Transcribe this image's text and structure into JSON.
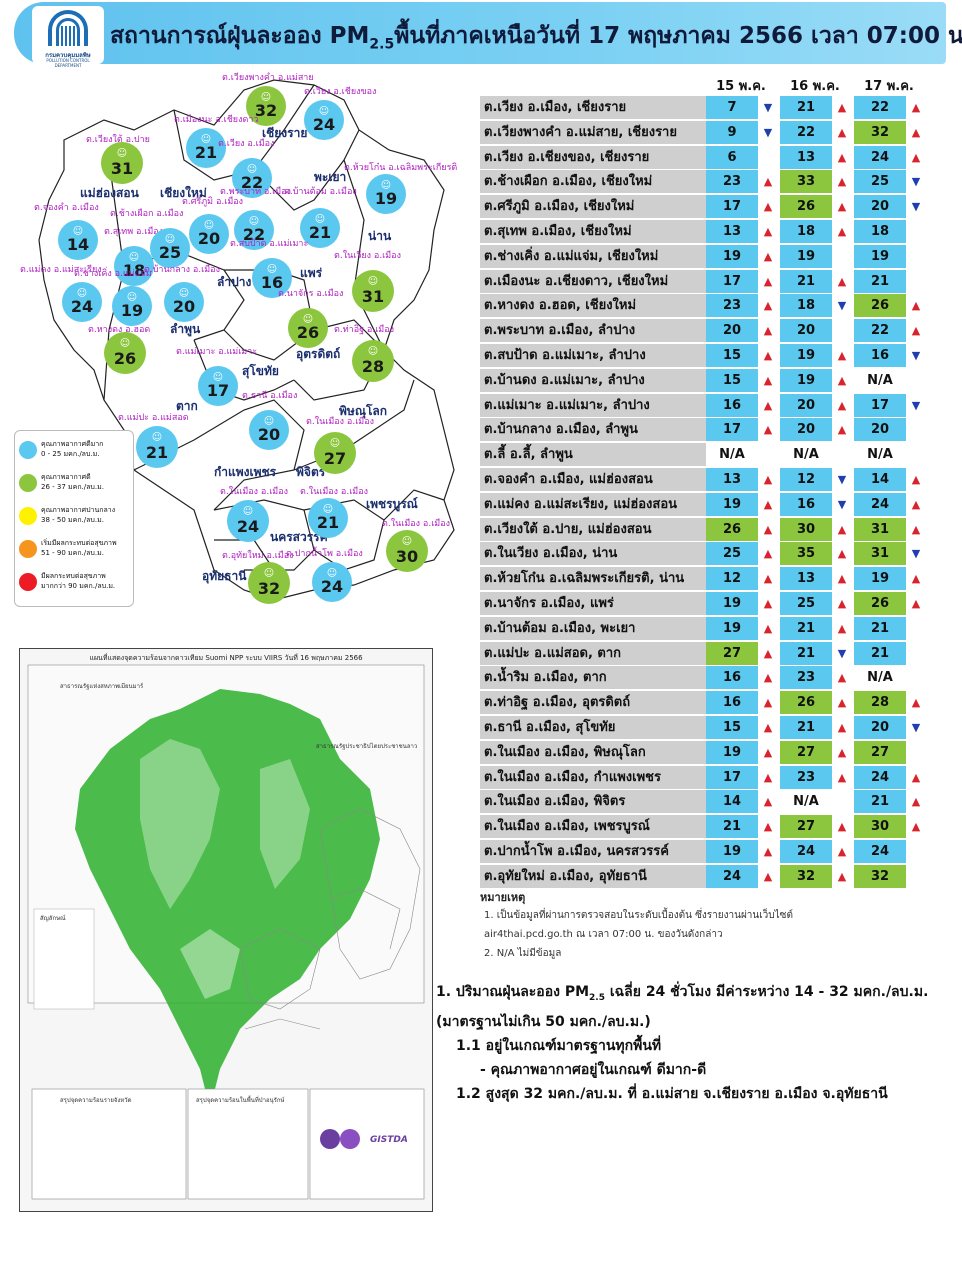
{
  "header": {
    "logo_text": "กรมควบคุมมลพิษ",
    "logo_subtext": "POLLUTION CONTROL DEPARTMENT",
    "title_prefix": "สถานการณ์ฝุ่นละออง PM",
    "title_sub": "2.5",
    "title_suffix": "พื้นที่ภาคเหนือวันที่ 17 พฤษภาคม 2566 เวลา 07:00 น."
  },
  "colors": {
    "very_good": "#5bc8f0",
    "good": "#8cc63e",
    "moderate": "#fff200",
    "start_effect": "#f7941d",
    "unhealthy": "#ed1c24",
    "station_cell": "#cfcfcf",
    "up_arrow": "#d9232d",
    "down_arrow": "#1f3fb0"
  },
  "map": {
    "provinces": [
      {
        "name": "เชียงราย"
      },
      {
        "name": "แม่ฮ่องสอน"
      },
      {
        "name": "เชียงใหม่"
      },
      {
        "name": "พะเยา"
      },
      {
        "name": "น่าน"
      },
      {
        "name": "ลำปาง"
      },
      {
        "name": "แพร่"
      },
      {
        "name": "ลำพูน"
      },
      {
        "name": "อุตรดิตถ์"
      },
      {
        "name": "สุโขทัย"
      },
      {
        "name": "ตาก"
      },
      {
        "name": "พิษณุโลก"
      },
      {
        "name": "กำแพงเพชร"
      },
      {
        "name": "พิจิตร"
      },
      {
        "name": "เพชรบูรณ์"
      },
      {
        "name": "นครสวรรค์"
      },
      {
        "name": "อุทัยธานี"
      }
    ],
    "stations": [
      {
        "label": "ต.เวียงพางคำ อ.แม่สาย",
        "value": "32",
        "level": "good"
      },
      {
        "label": "ต.เวียง อ.เชียงของ",
        "value": "24",
        "level": "very_good"
      },
      {
        "label": "ต.เมืองนะ อ.เชียงดาว",
        "value": "21",
        "level": "very_good"
      },
      {
        "label": "ต.เวียง อ.เมือง",
        "value": "22",
        "level": "very_good"
      },
      {
        "label": "ต.เวียงใต้ อ.ปาย",
        "value": "31",
        "level": "good"
      },
      {
        "label": "ต.ห้วยโก๋น อ.เฉลิมพระเกียรติ",
        "value": "19",
        "level": "very_good"
      },
      {
        "label": "ต.จองคำ อ.เมือง",
        "value": "14",
        "level": "very_good"
      },
      {
        "label": "ต.ศรีภูมิ อ.เมือง",
        "value": "20",
        "level": "very_good"
      },
      {
        "label": "ต.พระบาท อ.เมือง",
        "value": "22",
        "level": "very_good"
      },
      {
        "label": "ต.บ้านต้อม อ.เมือง",
        "value": "21",
        "level": "very_good"
      },
      {
        "label": "ต.สุเทพ อ.เมือง",
        "value": "18",
        "level": "very_good"
      },
      {
        "label": "ต.ช้างเผือก อ.เมือง",
        "value": "25",
        "level": "very_good"
      },
      {
        "label": "ต.สบป้าด อ.แม่เมาะ",
        "value": "16",
        "level": "very_good"
      },
      {
        "label": "ต.ในเวียง อ.เมือง",
        "value": "31",
        "level": "good"
      },
      {
        "label": "ต.แม่คง อ.แม่สะเรียง",
        "value": "24",
        "level": "very_good"
      },
      {
        "label": "ต.ช่างเคิ่ง อ.แม่แจ่ม",
        "value": "19",
        "level": "very_good"
      },
      {
        "label": "ต.บ้านกลาง อ.เมือง",
        "value": "20",
        "level": "very_good"
      },
      {
        "label": "ต.นาจักร อ.เมือง",
        "value": "26",
        "level": "good"
      },
      {
        "label": "ต.ท่าอิฐ อ.เมือง",
        "value": "28",
        "level": "good"
      },
      {
        "label": "ต.หางดง อ.ฮอด",
        "value": "26",
        "level": "good"
      },
      {
        "label": "ต.แม่เมาะ อ.แม่เมาะ",
        "value": "17",
        "level": "very_good"
      },
      {
        "label": "ต.ธานี อ.เมือง",
        "value": "20",
        "level": "very_good"
      },
      {
        "label": "ต.แม่ปะ อ.แม่สอด",
        "value": "21",
        "level": "very_good"
      },
      {
        "label": "ต.ในเมือง อ.เมือง",
        "value": "27",
        "level": "good"
      },
      {
        "label": "ต.ในเมือง อ.เมือง",
        "value": "24",
        "level": "very_good"
      },
      {
        "label": "ต.ในเมือง อ.เมือง",
        "value": "21",
        "level": "very_good"
      },
      {
        "label": "ต.ในเมือง อ.เมือง",
        "value": "30",
        "level": "good"
      },
      {
        "label": "ต.อุทัยใหม่ อ.เมือง",
        "value": "32",
        "level": "good"
      },
      {
        "label": "ต.ปากน้ำโพ อ.เมือง",
        "value": "24",
        "level": "very_good"
      }
    ],
    "legend": [
      {
        "label": "คุณภาพอากาศดีมาก",
        "range": "0 - 25 มคก./ลบ.ม.",
        "level": "very_good"
      },
      {
        "label": "คุณภาพอากาศดี",
        "range": "26 - 37 มคก./ลบ.ม.",
        "level": "good"
      },
      {
        "label": "คุณภาพอากาศปานกลาง",
        "range": "38 - 50 มคก./ลบ.ม.",
        "level": "moderate"
      },
      {
        "label": "เริ่มมีผลกระทบต่อสุขภาพ",
        "range": "51 - 90 มคก./ลบ.ม.",
        "level": "start_effect"
      },
      {
        "label": "มีผลกระทบต่อสุขภาพ",
        "range": "มากกว่า 90 มคก./ลบ.ม.",
        "level": "unhealthy"
      }
    ]
  },
  "satellite_map": {
    "title": "แผนที่แสดงจุดความร้อนจากดาวเทียม Suomi NPP ระบบ VIIRS วันที่ 16 พฤษภาคม 2566",
    "country_label_1": "สาธารณรัฐแห่งสหภาพเมียนมาร์",
    "country_label_2": "สาธารณรัฐประชาธิปไตยประชาชนลาว",
    "legend_title": "สัญลักษณ์",
    "bottom_left_title": "สรุปจุดความร้อนรายจังหวัด",
    "bottom_mid_title": "สรุปจุดความร้อนในพื้นที่ป่าอนุรักษ์",
    "agency": "GISTDA"
  },
  "table": {
    "days": [
      "15 พ.ค.",
      "16 พ.ค.",
      "17 พ.ค."
    ],
    "rows": [
      {
        "station": "ต.เวียง อ.เมือง, เชียงราย",
        "d1": "7",
        "t1": "down",
        "d2": "21",
        "t2": "up",
        "d3": "22",
        "t3": "up"
      },
      {
        "station": "ต.เวียงพางคำ อ.แม่สาย, เชียงราย",
        "d1": "9",
        "t1": "down",
        "d2": "22",
        "t2": "up",
        "d3": "32",
        "t3": "up"
      },
      {
        "station": "ต.เวียง อ.เชียงของ, เชียงราย",
        "d1": "6",
        "t1": "",
        "d2": "13",
        "t2": "up",
        "d3": "24",
        "t3": "up"
      },
      {
        "station": "ต.ช้างเผือก อ.เมือง, เชียงใหม่",
        "d1": "23",
        "t1": "up",
        "d2": "33",
        "t2": "up",
        "d3": "25",
        "t3": "down"
      },
      {
        "station": "ต.ศรีภูมิ อ.เมือง, เชียงใหม่",
        "d1": "17",
        "t1": "up",
        "d2": "26",
        "t2": "up",
        "d3": "20",
        "t3": "down"
      },
      {
        "station": "ต.สุเทพ อ.เมือง, เชียงใหม่",
        "d1": "13",
        "t1": "up",
        "d2": "18",
        "t2": "up",
        "d3": "18",
        "t3": ""
      },
      {
        "station": "ต.ช่างเคิ่ง อ.แม่แจ่ม, เชียงใหม่",
        "d1": "19",
        "t1": "up",
        "d2": "19",
        "t2": "",
        "d3": "19",
        "t3": ""
      },
      {
        "station": "ต.เมืองนะ อ.เชียงดาว, เชียงใหม่",
        "d1": "17",
        "t1": "up",
        "d2": "21",
        "t2": "up",
        "d3": "21",
        "t3": ""
      },
      {
        "station": "ต.หางดง อ.ฮอด, เชียงใหม่",
        "d1": "23",
        "t1": "up",
        "d2": "18",
        "t2": "down",
        "d3": "26",
        "t3": "up"
      },
      {
        "station": "ต.พระบาท อ.เมือง, ลำปาง",
        "d1": "20",
        "t1": "up",
        "d2": "20",
        "t2": "",
        "d3": "22",
        "t3": "up"
      },
      {
        "station": "ต.สบป้าด อ.แม่เมาะ, ลำปาง",
        "d1": "15",
        "t1": "up",
        "d2": "19",
        "t2": "up",
        "d3": "16",
        "t3": "down"
      },
      {
        "station": "ต.บ้านดง อ.แม่เมาะ, ลำปาง",
        "d1": "15",
        "t1": "up",
        "d2": "19",
        "t2": "up",
        "d3": "N/A",
        "t3": ""
      },
      {
        "station": "ต.แม่เมาะ อ.แม่เมาะ, ลำปาง",
        "d1": "16",
        "t1": "up",
        "d2": "20",
        "t2": "up",
        "d3": "17",
        "t3": "down"
      },
      {
        "station": "ต.บ้านกลาง อ.เมือง, ลำพูน",
        "d1": "17",
        "t1": "up",
        "d2": "20",
        "t2": "up",
        "d3": "20",
        "t3": ""
      },
      {
        "station": "ต.ลี้ อ.ลี้, ลำพูน",
        "d1": "N/A",
        "t1": "",
        "d2": "N/A",
        "t2": "",
        "d3": "N/A",
        "t3": ""
      },
      {
        "station": "ต.จองคำ อ.เมือง, แม่ฮ่องสอน",
        "d1": "13",
        "t1": "up",
        "d2": "12",
        "t2": "down",
        "d3": "14",
        "t3": "up"
      },
      {
        "station": "ต.แม่คง อ.แม่สะเรียง, แม่ฮ่องสอน",
        "d1": "19",
        "t1": "up",
        "d2": "16",
        "t2": "down",
        "d3": "24",
        "t3": "up"
      },
      {
        "station": "ต.เวียงใต้ อ.ปาย, แม่ฮ่องสอน",
        "d1": "26",
        "t1": "up",
        "d2": "30",
        "t2": "up",
        "d3": "31",
        "t3": "up"
      },
      {
        "station": "ต.ในเวียง อ.เมือง, น่าน",
        "d1": "25",
        "t1": "up",
        "d2": "35",
        "t2": "up",
        "d3": "31",
        "t3": "down"
      },
      {
        "station": "ต.ห้วยโก๋น อ.เฉลิมพระเกียรติ, น่าน",
        "d1": "12",
        "t1": "up",
        "d2": "13",
        "t2": "up",
        "d3": "19",
        "t3": "up"
      },
      {
        "station": "ต.นาจักร อ.เมือง, แพร่",
        "d1": "19",
        "t1": "up",
        "d2": "25",
        "t2": "up",
        "d3": "26",
        "t3": "up"
      },
      {
        "station": "ต.บ้านต้อม อ.เมือง, พะเยา",
        "d1": "19",
        "t1": "up",
        "d2": "21",
        "t2": "up",
        "d3": "21",
        "t3": ""
      },
      {
        "station": "ต.แม่ปะ อ.แม่สอด, ตาก",
        "d1": "27",
        "t1": "up",
        "d2": "21",
        "t2": "down",
        "d3": "21",
        "t3": ""
      },
      {
        "station": "ต.น้ำริม อ.เมือง, ตาก",
        "d1": "16",
        "t1": "up",
        "d2": "23",
        "t2": "up",
        "d3": "N/A",
        "t3": ""
      },
      {
        "station": "ต.ท่าอิฐ อ.เมือง, อุตรดิตถ์",
        "d1": "16",
        "t1": "up",
        "d2": "26",
        "t2": "up",
        "d3": "28",
        "t3": "up"
      },
      {
        "station": "ต.ธานี อ.เมือง, สุโขทัย",
        "d1": "15",
        "t1": "up",
        "d2": "21",
        "t2": "up",
        "d3": "20",
        "t3": "down"
      },
      {
        "station": "ต.ในเมือง อ.เมือง, พิษณุโลก",
        "d1": "19",
        "t1": "up",
        "d2": "27",
        "t2": "up",
        "d3": "27",
        "t3": ""
      },
      {
        "station": "ต.ในเมือง อ.เมือง, กำแพงเพชร",
        "d1": "17",
        "t1": "up",
        "d2": "23",
        "t2": "up",
        "d3": "24",
        "t3": "up"
      },
      {
        "station": "ต.ในเมือง อ.เมือง, พิจิตร",
        "d1": "14",
        "t1": "up",
        "d2": "N/A",
        "t2": "",
        "d3": "21",
        "t3": "up"
      },
      {
        "station": "ต.ในเมือง อ.เมือง, เพชรบูรณ์",
        "d1": "21",
        "t1": "up",
        "d2": "27",
        "t2": "up",
        "d3": "30",
        "t3": "up"
      },
      {
        "station": "ต.ปากน้ำโพ อ.เมือง, นครสวรรค์",
        "d1": "19",
        "t1": "up",
        "d2": "24",
        "t2": "up",
        "d3": "24",
        "t3": ""
      },
      {
        "station": "ต.อุทัยใหม่ อ.เมือง, อุทัยธานี",
        "d1": "24",
        "t1": "up",
        "d2": "32",
        "t2": "up",
        "d3": "32",
        "t3": ""
      }
    ]
  },
  "notes": {
    "head": "หมายเหตุ",
    "note1a": "1. เป็นข้อมูลที่ผ่านการตรวจสอบในระดับเบื้องต้น ซึ่งรายงานผ่านเว็บไซต์",
    "note1b": "air4thai.pcd.go.th ณ เวลา 07:00 น. ของวันดังกล่าว",
    "note2": "2. N/A ไม่มีข้อมูล"
  },
  "summary": {
    "line1_prefix": "1. ปริมาณฝุ่นละออง PM",
    "line1_sub": "2.5",
    "line1_suffix": " เฉลี่ย 24 ชั่วโมง มีค่าระหว่าง 14 - 32 มคก./ลบ.ม.",
    "line2": "(มาตรฐานไม่เกิน 50 มคก./ลบ.ม.)",
    "line3": "1.1 อยู่ในเกณฑ์มาตรฐานทุกพื้นที่",
    "line4": "- คุณภาพอากาศอยู่ในเกณฑ์ ดีมาก-ดี",
    "line5": "1.2 สูงสุด 32 มคก./ลบ.ม. ที่ อ.แม่สาย จ.เชียงราย อ.เมือง จ.อุทัยธานี"
  }
}
